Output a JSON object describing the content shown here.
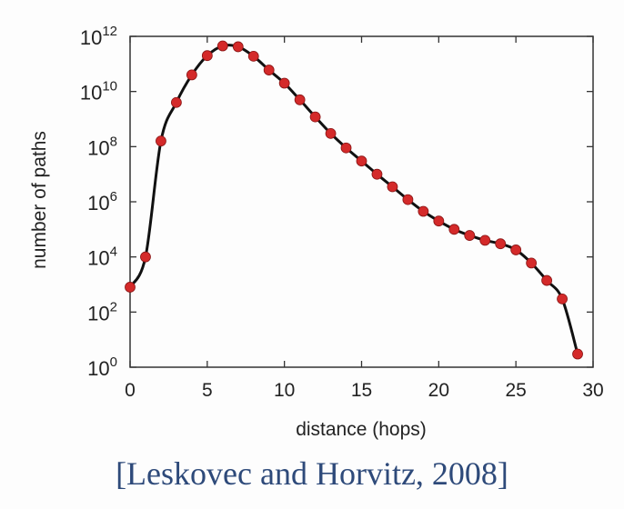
{
  "chart_data": {
    "type": "line",
    "title": "",
    "xlabel": "distance (hops)",
    "ylabel": "number of paths",
    "xlim": [
      0,
      30
    ],
    "ylim_log10": [
      0,
      12
    ],
    "y_scale": "log10",
    "grid": false,
    "x_ticks": [
      "0",
      "5",
      "10",
      "15",
      "20",
      "25",
      "30"
    ],
    "y_tick_base": "10",
    "y_tick_exponents": [
      "0",
      "2",
      "4",
      "6",
      "8",
      "10",
      "12"
    ],
    "series": [
      {
        "x": [
          0,
          1,
          2,
          3,
          4,
          5,
          6,
          7,
          8,
          9,
          10,
          11,
          12,
          13,
          14,
          15,
          16,
          17,
          18,
          19,
          20,
          21,
          22,
          23,
          24,
          25,
          26,
          27,
          28,
          29
        ],
        "y": [
          800,
          10000,
          160000000.0,
          4000000000.0,
          40000000000.0,
          200000000000.0,
          450000000000.0,
          420000000000.0,
          190000000000.0,
          60000000000.0,
          20000000000.0,
          5000000000.0,
          1200000000.0,
          300000000.0,
          90000000.0,
          30000000.0,
          10000000.0,
          3500000.0,
          1200000.0,
          450000.0,
          200000.0,
          100000.0,
          60000.0,
          40000.0,
          30000.0,
          18000.0,
          6000,
          1400,
          300,
          3
        ],
        "line_color": "#111111",
        "marker_color": "#d42a2a"
      }
    ]
  },
  "citation": "[Leskovec and Horvitz, 2008]"
}
